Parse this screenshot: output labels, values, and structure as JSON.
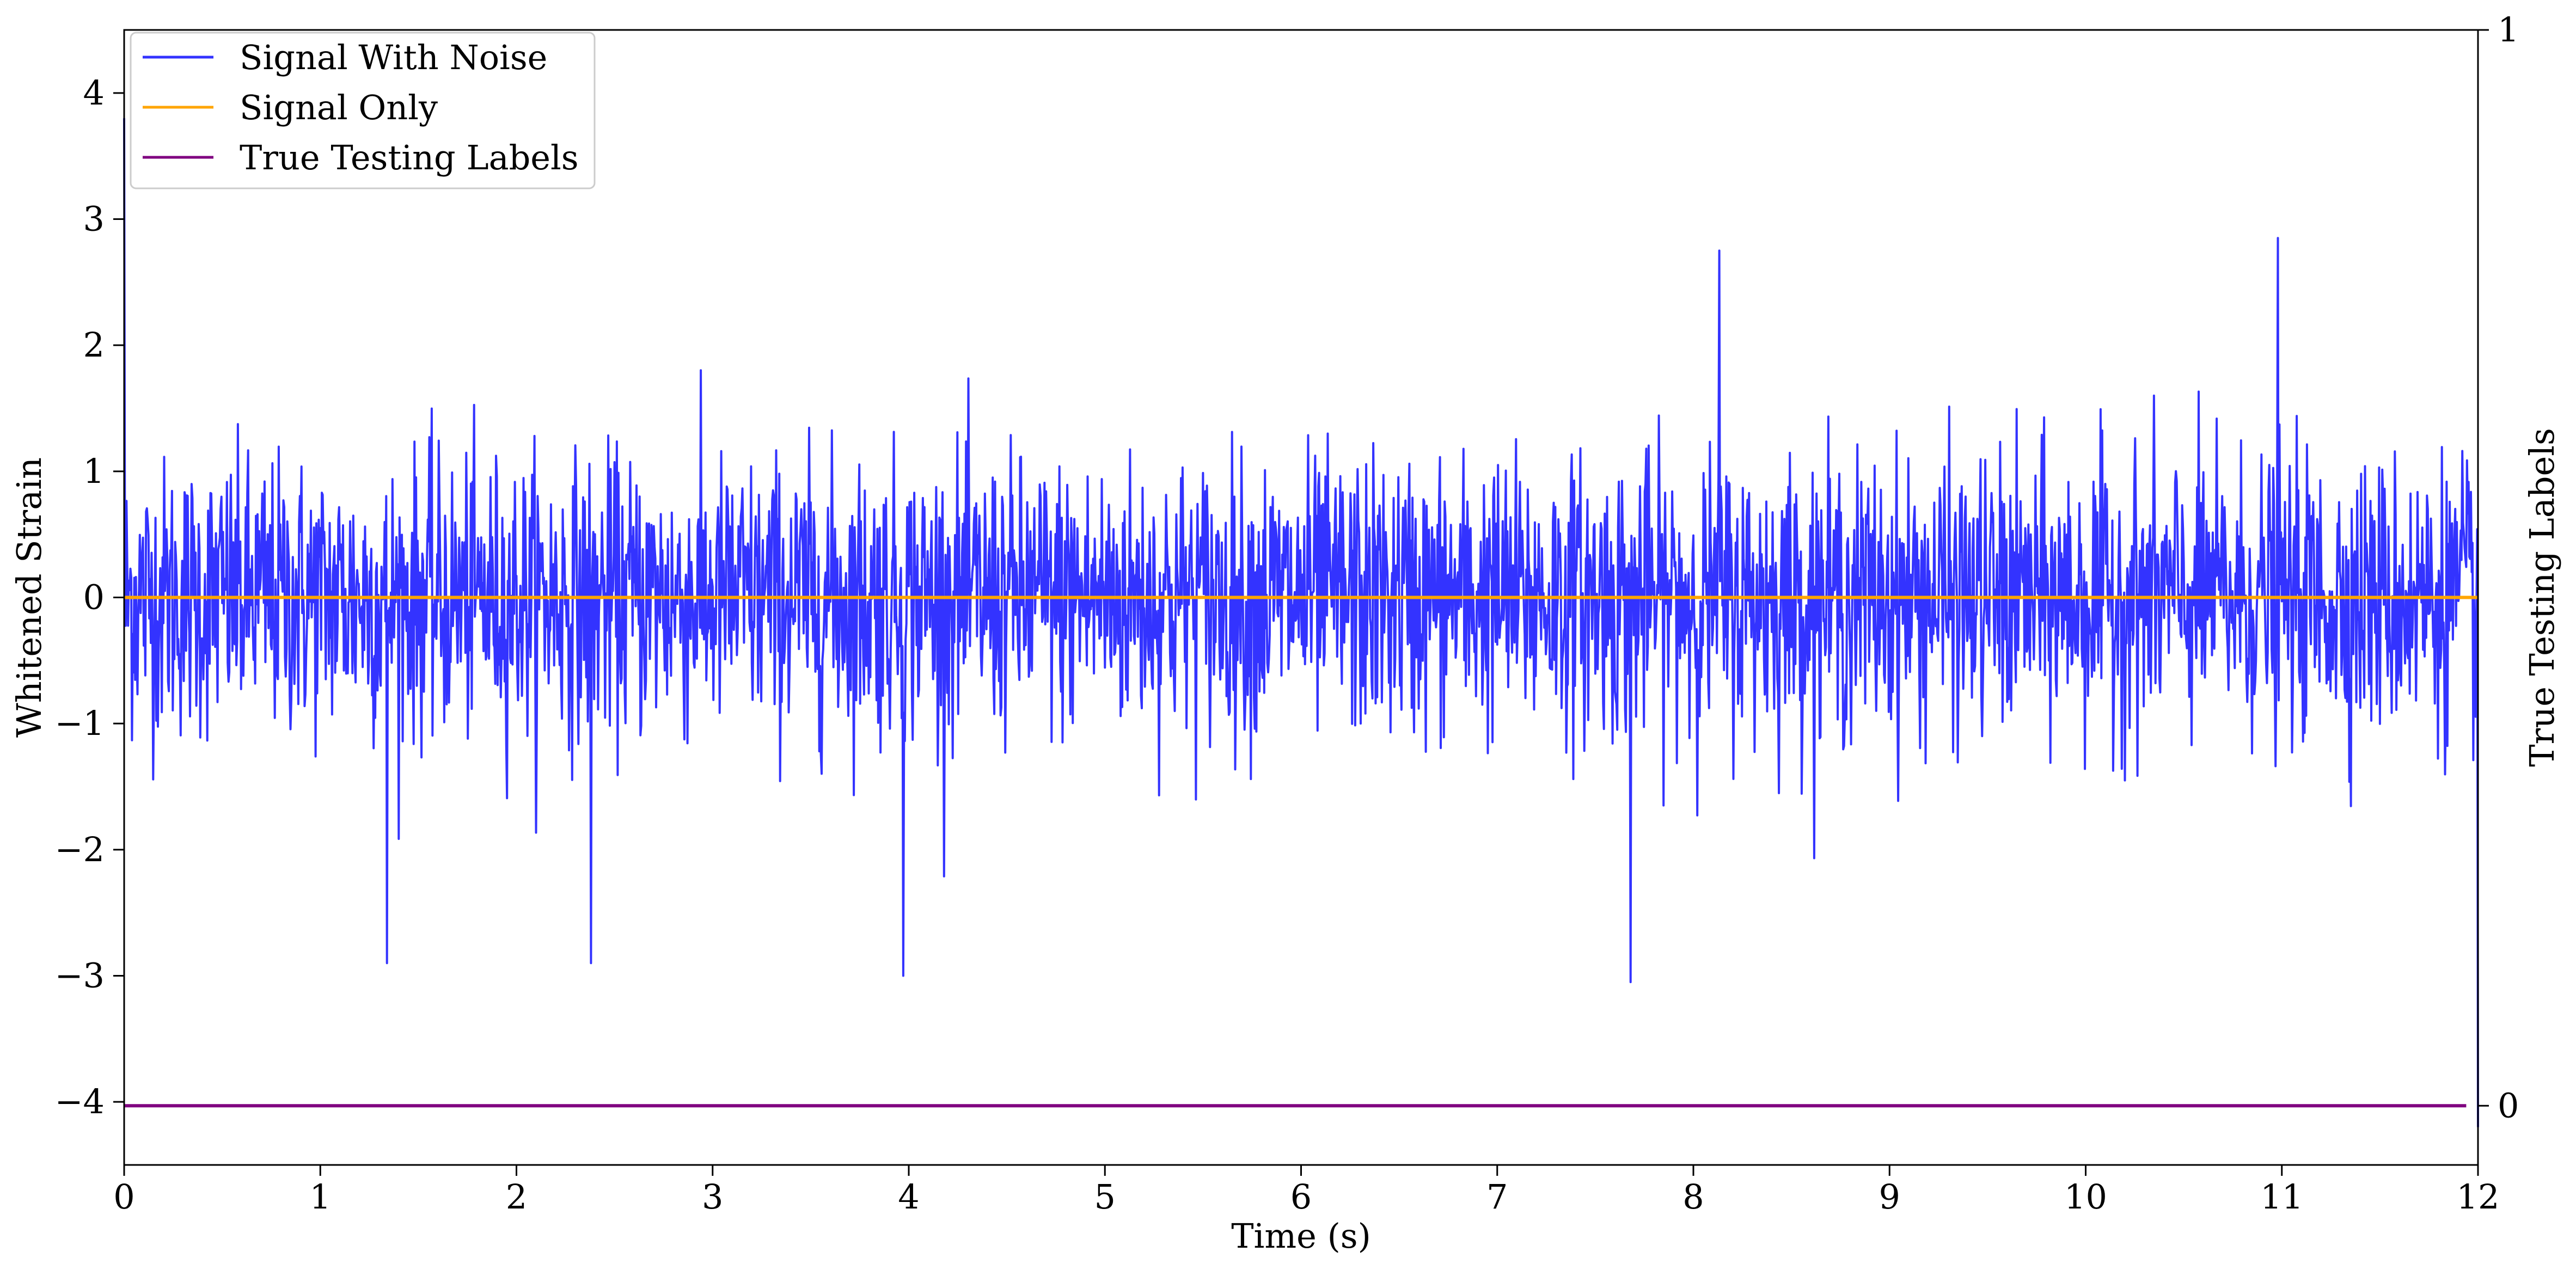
{
  "chart_data": {
    "type": "line",
    "title": "",
    "xlabel": "Time (s)",
    "ylabel": "Whitened Strain",
    "y2label": "True Testing Labels",
    "xlim": [
      0,
      12
    ],
    "ylim": [
      -4.5,
      4.5
    ],
    "y2lim": [
      -0.055,
      1
    ],
    "x_ticks": [
      0,
      1,
      2,
      3,
      4,
      5,
      6,
      7,
      8,
      9,
      10,
      11,
      12
    ],
    "x_tick_labels": [
      "0",
      "1",
      "2",
      "3",
      "4",
      "5",
      "6",
      "7",
      "8",
      "9",
      "10",
      "11",
      "12"
    ],
    "y_ticks": [
      -4,
      -3,
      -2,
      -1,
      0,
      1,
      2,
      3,
      4
    ],
    "y_tick_labels": [
      "−4",
      "−3",
      "−2",
      "−1",
      "0",
      "1",
      "2",
      "3",
      "4"
    ],
    "y2_ticks": [
      0,
      1
    ],
    "y2_tick_labels": [
      "0",
      "1"
    ],
    "legend_position": "top-left",
    "grid": false,
    "series": [
      {
        "name": "Signal With Noise",
        "color": "#3333ff",
        "axis": "left",
        "kind": "noise",
        "x_range": [
          0,
          12
        ],
        "sample_rate_hz": 250,
        "std": 0.55,
        "typical_max": 2.5,
        "typical_min": -2.6,
        "peaks": [
          {
            "x": 0.0,
            "y": 3.8
          },
          {
            "x": 1.34,
            "y": -2.9
          },
          {
            "x": 2.38,
            "y": -2.9
          },
          {
            "x": 3.97,
            "y": -3.0
          },
          {
            "x": 7.68,
            "y": -3.05
          },
          {
            "x": 8.13,
            "y": 2.75
          },
          {
            "x": 10.98,
            "y": 2.85
          },
          {
            "x": 12.0,
            "y": -4.2
          }
        ]
      },
      {
        "name": "Signal Only",
        "color": "#ffa500",
        "axis": "left",
        "kind": "line",
        "x": [
          0,
          12
        ],
        "y": [
          0,
          0
        ]
      },
      {
        "name": "True Testing Labels",
        "color": "#800080",
        "axis": "right",
        "kind": "line",
        "x": [
          0,
          11.94
        ],
        "y": [
          0,
          0
        ]
      }
    ]
  }
}
